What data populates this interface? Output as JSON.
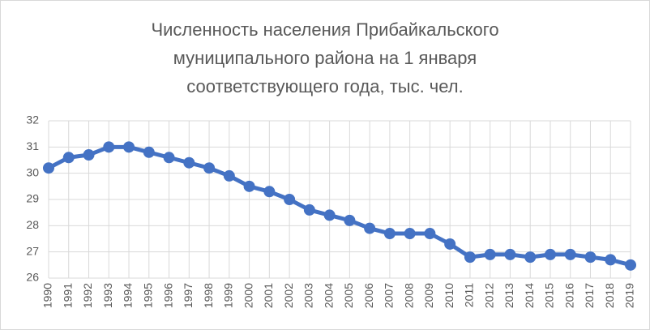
{
  "chart_data": {
    "type": "line",
    "title": [
      "Численность населения Прибайкальского",
      "муниципального района на 1 января",
      "соответствующего года, тыс. чел."
    ],
    "categories": [
      "1990",
      "1991",
      "1992",
      "1993",
      "1994",
      "1995",
      "1996",
      "1997",
      "1998",
      "1999",
      "2000",
      "2001",
      "2002",
      "2003",
      "2004",
      "2005",
      "2006",
      "2007",
      "2008",
      "2009",
      "2010",
      "2011",
      "2012",
      "2013",
      "2014",
      "2015",
      "2016",
      "2017",
      "2018",
      "2019"
    ],
    "values": [
      30.2,
      30.6,
      30.7,
      31.0,
      31.0,
      30.8,
      30.6,
      30.4,
      30.2,
      29.9,
      29.5,
      29.3,
      29.0,
      28.6,
      28.4,
      28.2,
      27.9,
      27.7,
      27.7,
      27.7,
      27.3,
      26.8,
      26.9,
      26.9,
      26.8,
      26.9,
      26.9,
      26.8,
      26.7,
      26.5
    ],
    "color": "#4472c4",
    "ylim": [
      26,
      32
    ],
    "yticks": [
      26,
      27,
      28,
      29,
      30,
      31,
      32
    ],
    "grid": true
  }
}
